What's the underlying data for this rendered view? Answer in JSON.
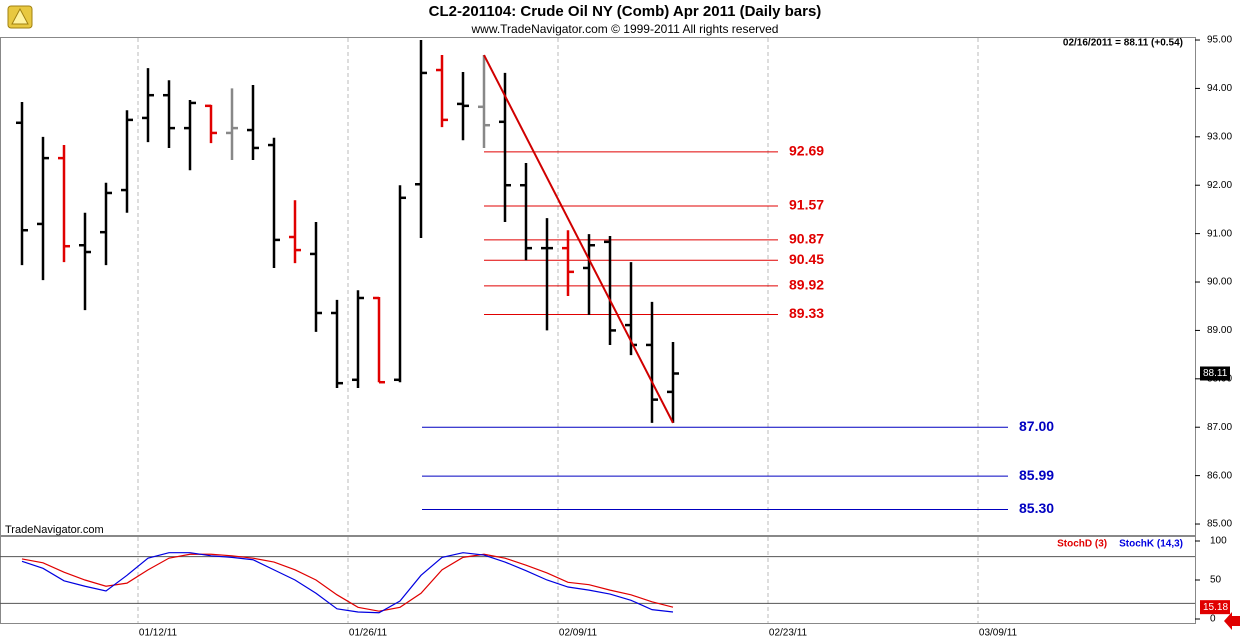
{
  "chart_data": [
    {
      "type": "ohlc",
      "title": "CL2-201104:  Crude Oil NY (Comb) Apr 2011  (Daily bars)",
      "subtitle": "www.TradeNavigator.com © 1999-2011 All rights reserved",
      "status": "02/16/2011 = 88.11 (+0.54)",
      "watermark": "TradeNavigator.com",
      "open": [
        93.29,
        91.2,
        92.56,
        90.76,
        91.03,
        91.9,
        93.39,
        93.86,
        93.18,
        93.64,
        93.08,
        93.14,
        92.83,
        90.93,
        90.58,
        89.36,
        87.98,
        89.67,
        87.98,
        92.02,
        94.38,
        93.68,
        93.62,
        93.31,
        92.0,
        90.7,
        90.7,
        90.29,
        90.83,
        89.11,
        88.7,
        87.73,
        null,
        null,
        null,
        null,
        null,
        null,
        null,
        null,
        null,
        null,
        null,
        null,
        null,
        null,
        null
      ],
      "high": [
        93.72,
        93.0,
        92.83,
        91.43,
        92.05,
        93.55,
        94.42,
        94.17,
        93.76,
        93.66,
        94.0,
        94.07,
        92.98,
        91.69,
        91.24,
        89.63,
        89.83,
        89.69,
        92.0,
        95.0,
        94.69,
        94.34,
        94.69,
        94.32,
        92.46,
        91.32,
        91.07,
        90.99,
        90.95,
        90.41,
        89.59,
        88.76,
        null,
        null,
        null,
        null,
        null,
        null,
        null,
        null,
        null,
        null,
        null,
        null,
        null,
        null,
        null
      ],
      "low": [
        90.35,
        90.04,
        90.41,
        89.42,
        90.35,
        91.43,
        92.89,
        92.77,
        92.31,
        92.87,
        92.52,
        92.52,
        90.29,
        90.39,
        88.97,
        87.81,
        87.81,
        87.93,
        87.93,
        90.91,
        93.2,
        92.93,
        92.77,
        91.24,
        90.45,
        89.0,
        89.71,
        89.32,
        88.7,
        88.49,
        87.09,
        87.09,
        null,
        null,
        null,
        null,
        null,
        null,
        null,
        null,
        null,
        null,
        null,
        null,
        null,
        null,
        null
      ],
      "close": [
        91.07,
        92.56,
        90.74,
        90.62,
        91.84,
        93.35,
        93.86,
        93.18,
        93.7,
        93.08,
        93.18,
        92.77,
        90.87,
        90.66,
        89.36,
        87.91,
        89.67,
        87.93,
        91.74,
        94.32,
        93.35,
        93.64,
        93.24,
        92.0,
        90.7,
        90.7,
        90.21,
        90.76,
        89.0,
        88.7,
        87.57,
        88.11,
        null,
        null,
        null,
        null,
        null,
        null,
        null,
        null,
        null,
        null,
        null,
        null,
        null,
        null,
        null
      ],
      "bar_colors": [
        "#000000",
        "#000000",
        "#e00000",
        "#000000",
        "#000000",
        "#000000",
        "#000000",
        "#000000",
        "#000000",
        "#e00000",
        "#888888",
        "#000000",
        "#000000",
        "#e00000",
        "#000000",
        "#000000",
        "#000000",
        "#e00000",
        "#000000",
        "#000000",
        "#e00000",
        "#000000",
        "#888888",
        "#000000",
        "#000000",
        "#000000",
        "#e00000",
        "#000000",
        "#000000",
        "#000000",
        "#000000",
        "#000000",
        null,
        null,
        null,
        null,
        null,
        null,
        null,
        null,
        null,
        null,
        null,
        null,
        null,
        null,
        null
      ],
      "ylim": [
        84.8,
        95.05
      ],
      "yticks": [
        {
          "value": 85,
          "label": "85.00"
        },
        {
          "value": 86,
          "label": "86.00"
        },
        {
          "value": 87,
          "label": "87.00"
        },
        {
          "value": 88,
          "label": "88.00"
        },
        {
          "value": 89,
          "label": "89.00"
        },
        {
          "value": 90,
          "label": "90.00"
        },
        {
          "value": 91,
          "label": "91.00"
        },
        {
          "value": 92,
          "label": "92.00"
        },
        {
          "value": 93,
          "label": "93.00"
        },
        {
          "value": 94,
          "label": "94.00"
        },
        {
          "value": 95,
          "label": "95.00"
        }
      ],
      "fib_levels": {
        "color": "#e00000",
        "levels": [
          92.69,
          91.57,
          90.87,
          90.45,
          89.92,
          89.33
        ]
      },
      "target_levels": {
        "color": "#0000c0",
        "levels": [
          {
            "value": 87,
            "label": "87.00"
          },
          85.99,
          {
            "value": 85.3,
            "label": "85.30"
          }
        ]
      },
      "trend_line": {
        "color": "#d00000"
      },
      "grid": true
    },
    {
      "type": "line",
      "categories": [
        null,
        null,
        null,
        null,
        null,
        null,
        "01/12/11",
        null,
        null,
        null,
        null,
        null,
        null,
        null,
        null,
        null,
        "01/26/11",
        null,
        null,
        null,
        null,
        null,
        null,
        null,
        null,
        null,
        "02/09/11",
        null,
        null,
        null,
        null,
        null,
        null,
        null,
        null,
        null,
        "02/23/11",
        null,
        null,
        null,
        null,
        null,
        null,
        null,
        null,
        null,
        "03/09/11"
      ],
      "series": [
        {
          "name": "StochD (3)",
          "color": "#e00000",
          "values": [
            77,
            72,
            60,
            50,
            42,
            46,
            63,
            78,
            83,
            83,
            81,
            78,
            73,
            63,
            50,
            31,
            15,
            10,
            15,
            33,
            63,
            79,
            83,
            78,
            69,
            59,
            47,
            44,
            37,
            31,
            22,
            15.18,
            null,
            null,
            null,
            null,
            null,
            null,
            null,
            null,
            null,
            null,
            null,
            null,
            null,
            null,
            null
          ]
        },
        {
          "name": "StochK (14,3)",
          "color": "#0000e0",
          "values": [
            74,
            65,
            49,
            42,
            36,
            56,
            78,
            85,
            85,
            81,
            79,
            76,
            63,
            50,
            33,
            13,
            9,
            8,
            23,
            56,
            79,
            85,
            82,
            73,
            62,
            50,
            41,
            37,
            32,
            24,
            12,
            9,
            null,
            null,
            null,
            null,
            null,
            null,
            null,
            null,
            null,
            null,
            null,
            null,
            null,
            null,
            null
          ]
        }
      ],
      "ylim": [
        -5,
        105
      ],
      "yticks": [
        0,
        50,
        100
      ],
      "levels": [
        20,
        80
      ],
      "grid": true
    }
  ]
}
